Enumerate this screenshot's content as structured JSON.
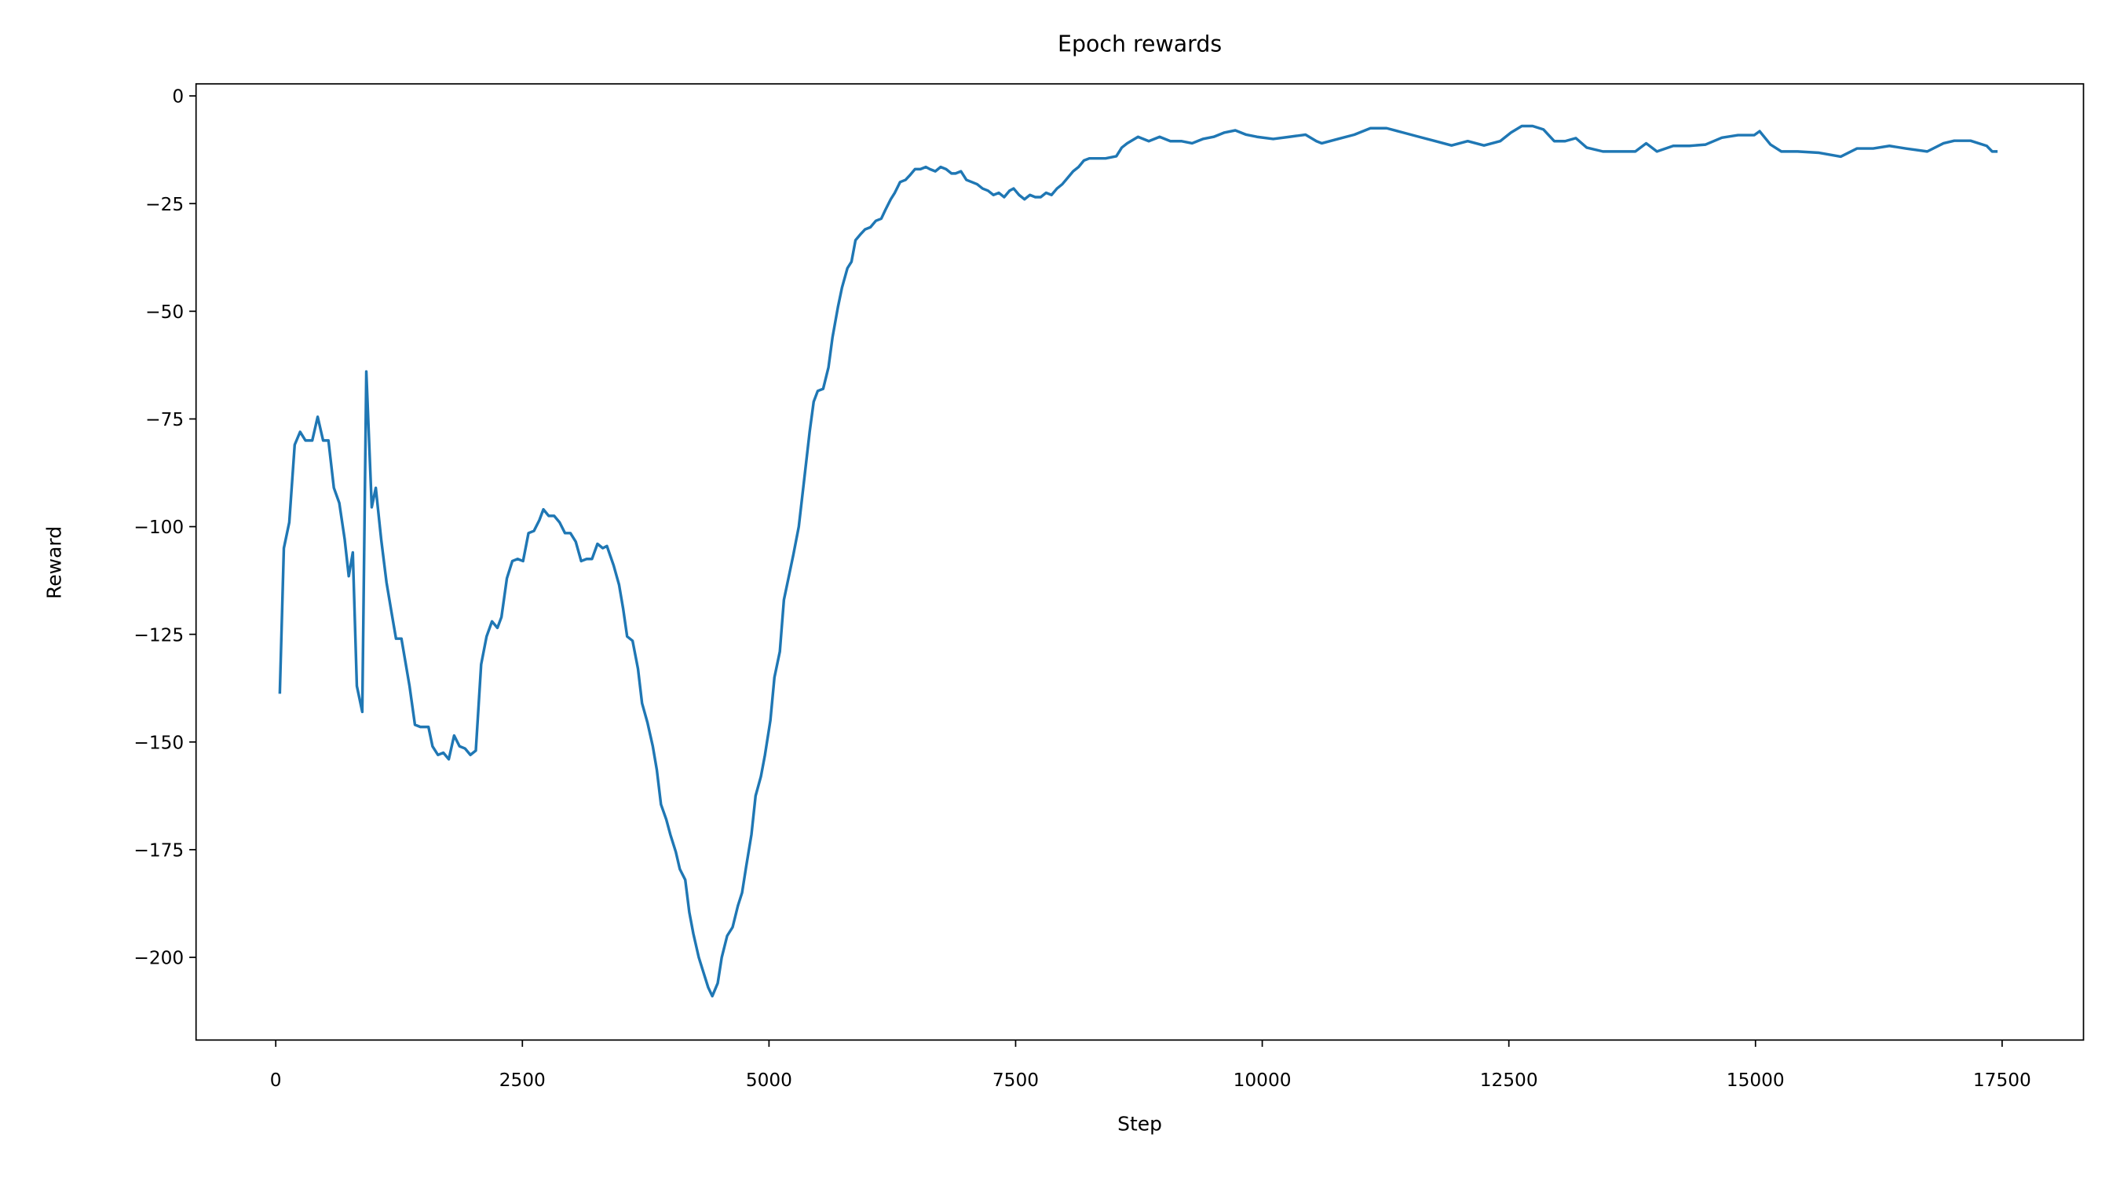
{
  "chart_data": {
    "type": "line",
    "title": "Epoch rewards",
    "x_label": "Step",
    "y_label": "Reward",
    "color": "#1f77b4",
    "grid": false,
    "xlim": [
      -808,
      18325
    ],
    "ylim": [
      -219.2,
      2.8
    ],
    "xticks": [
      0,
      2500,
      5000,
      7500,
      10000,
      12500,
      15000,
      17500
    ],
    "yticks": [
      {
        "value": 0,
        "label": "0"
      },
      {
        "value": -25,
        "label": "−25"
      },
      {
        "value": -50,
        "label": "−50"
      },
      {
        "value": -75,
        "label": "−75"
      },
      {
        "value": -100,
        "label": "−100"
      },
      {
        "value": -125,
        "label": "−125"
      },
      {
        "value": -150,
        "label": "−150"
      },
      {
        "value": -175,
        "label": "−175"
      },
      {
        "value": -200,
        "label": "−200"
      }
    ],
    "x": [
      41,
      82,
      137,
      192,
      247,
      301,
      370,
      425,
      480,
      534,
      589,
      644,
      699,
      740,
      781,
      822,
      877,
      918,
      973,
      1014,
      1069,
      1123,
      1178,
      1219,
      1274,
      1356,
      1411,
      1466,
      1548,
      1589,
      1644,
      1699,
      1754,
      1808,
      1863,
      1918,
      1973,
      2028,
      2082,
      2137,
      2192,
      2247,
      2288,
      2343,
      2398,
      2452,
      2507,
      2562,
      2617,
      2672,
      2713,
      2767,
      2822,
      2877,
      2932,
      2987,
      3041,
      3096,
      3151,
      3206,
      3261,
      3315,
      3357,
      3425,
      3480,
      3521,
      3562,
      3617,
      3672,
      3713,
      3768,
      3822,
      3863,
      3905,
      3959,
      4000,
      4055,
      4096,
      4151,
      4192,
      4233,
      4288,
      4329,
      4384,
      4425,
      4480,
      4521,
      4576,
      4631,
      4685,
      4727,
      4768,
      4822,
      4864,
      4918,
      4959,
      5014,
      5055,
      5110,
      5151,
      5206,
      5247,
      5302,
      5357,
      5412,
      5453,
      5494,
      5549,
      5603,
      5644,
      5699,
      5740,
      5795,
      5836,
      5877,
      5932,
      5973,
      6028,
      6083,
      6138,
      6179,
      6234,
      6275,
      6329,
      6384,
      6425,
      6480,
      6535,
      6590,
      6631,
      6686,
      6740,
      6795,
      6850,
      6891,
      6946,
      7001,
      7056,
      7110,
      7165,
      7220,
      7275,
      7330,
      7384,
      7439,
      7480,
      7535,
      7590,
      7645,
      7699,
      7754,
      7809,
      7864,
      7919,
      7973,
      8028,
      8083,
      8138,
      8192,
      8247,
      8302,
      8412,
      8521,
      8576,
      8631,
      8741,
      8850,
      8960,
      9069,
      9179,
      9289,
      9398,
      9508,
      9617,
      9727,
      9837,
      9946,
      10111,
      10275,
      10439,
      10549,
      10604,
      10768,
      10933,
      11097,
      11261,
      11426,
      11590,
      11755,
      11919,
      12083,
      12248,
      12412,
      12522,
      12631,
      12741,
      12851,
      12960,
      13070,
      13179,
      13289,
      13453,
      13618,
      13782,
      13892,
      14001,
      14166,
      14330,
      14494,
      14659,
      14823,
      14988,
      15042,
      15152,
      15262,
      15426,
      15645,
      15864,
      16029,
      16193,
      16358,
      16522,
      16741,
      16906,
      17015,
      17180,
      17344,
      17399,
      17454
    ],
    "values": [
      -138.8,
      -105,
      -99,
      -81,
      -78,
      -80,
      -80,
      -74.5,
      -80,
      -80,
      -91,
      -94.5,
      -103,
      -111.5,
      -106,
      -137,
      -143,
      -64,
      -95.5,
      -91,
      -103,
      -113,
      -120.5,
      -126,
      -126,
      -137,
      -146,
      -146.5,
      -146.5,
      -151,
      -153,
      -152.5,
      -154,
      -148.5,
      -151,
      -151.5,
      -153,
      -152,
      -132,
      -125.5,
      -122,
      -123.5,
      -121,
      -112,
      -108,
      -107.5,
      -108,
      -101.5,
      -101,
      -98.5,
      -96,
      -97.5,
      -97.5,
      -99,
      -101.5,
      -101.5,
      -103.5,
      -108,
      -107.5,
      -107.5,
      -104,
      -105,
      -104.5,
      -109,
      -113.5,
      -119,
      -125.5,
      -126.5,
      -133,
      -141,
      -145.5,
      -151,
      -156.5,
      -164.5,
      -168,
      -171.5,
      -175.5,
      -179.5,
      -182,
      -189.5,
      -194.5,
      -200,
      -203,
      -207,
      -209,
      -206,
      -200,
      -195,
      -193,
      -188,
      -185,
      -179,
      -171.5,
      -162.5,
      -158,
      -153,
      -145,
      -135,
      -129,
      -117,
      -111,
      -106.5,
      -100,
      -89,
      -78,
      -71,
      -68.5,
      -68,
      -63,
      -56,
      -49,
      -44.5,
      -40,
      -38.5,
      -33.5,
      -32,
      -31,
      -30.5,
      -29,
      -28.5,
      -26.5,
      -24,
      -22.5,
      -20,
      -19.5,
      -18.5,
      -17,
      -17,
      -16.5,
      -17,
      -17.5,
      -16.5,
      -17,
      -18,
      -18,
      -17.5,
      -19.5,
      -20,
      -20.5,
      -21.5,
      -22,
      -23,
      -22.5,
      -23.5,
      -22,
      -21.5,
      -23,
      -24,
      -23,
      -23.5,
      -23.5,
      -22.5,
      -23,
      -21.5,
      -20.5,
      -19,
      -17.5,
      -16.5,
      -15,
      -14.5,
      -14.5,
      -14.5,
      -14,
      -12,
      -11,
      -9.5,
      -10.5,
      -9.5,
      -10.5,
      -10.5,
      -11,
      -10,
      -9.5,
      -8.5,
      -8,
      -9,
      -9.5,
      -10,
      -9.5,
      -9,
      -10.5,
      -11,
      -10,
      -9,
      -7.5,
      -7.5,
      -8.5,
      -9.5,
      -10.5,
      -11.5,
      -10.5,
      -11.5,
      -10.5,
      -8.5,
      -7,
      -7,
      -7.8,
      -10.5,
      -10.5,
      -9.8,
      -12,
      -12.9,
      -12.9,
      -12.9,
      -11,
      -12.9,
      -11.6,
      -11.6,
      -11.3,
      -9.7,
      -9.1,
      -9.1,
      -8.2,
      -11.3,
      -12.9,
      -12.9,
      -13.2,
      -14.1,
      -12.2,
      -12.2,
      -11.6,
      -12.2,
      -12.9,
      -11,
      -10.4,
      -10.4,
      -11.6,
      -12.9,
      -12.9
    ]
  }
}
